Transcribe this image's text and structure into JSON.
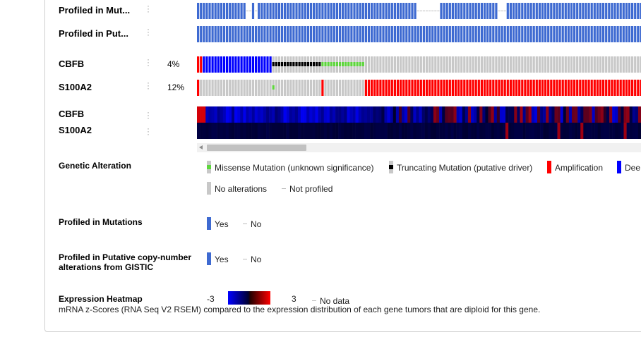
{
  "tracks": {
    "profiled_mutations_label": "Profiled in Mut...",
    "profiled_cna_label": "Profiled in Put...",
    "genes": [
      {
        "name": "CBFB",
        "pct": "4%"
      },
      {
        "name": "S100A2",
        "pct": "12%"
      }
    ],
    "heatmap_genes": [
      "CBFB",
      "S100A2"
    ]
  },
  "legend": {
    "genetic_alteration": {
      "title": "Genetic Alteration",
      "missense": "Missense Mutation (unknown significance)",
      "truncating": "Truncating Mutation (putative driver)",
      "amplification": "Amplification",
      "deep_deletion": "Dee",
      "no_alterations": "No alterations",
      "not_profiled": "Not profiled"
    },
    "profiled_mutations": {
      "title": "Profiled in Mutations",
      "yes": "Yes",
      "no": "No"
    },
    "profiled_cna": {
      "title_line1": "Profiled in Putative copy-number",
      "title_line2": "alterations from GISTIC",
      "yes": "Yes",
      "no": "No"
    },
    "expression_heatmap": {
      "title": "Expression Heatmap",
      "min": "-3",
      "max": "3",
      "no_data": "No data",
      "description": "mRNA z-Scores (RNA Seq V2 RSEM) compared to the expression distribution of each gene tumors that are diploid for this gene."
    }
  },
  "colors": {
    "profiled": "#3e6ad1",
    "no_alteration": "#c8c8c8",
    "amplification": "#ff0000",
    "deep_deletion": "#0000ff",
    "missense": "#5ed63d",
    "truncating": "#000000",
    "heat_low": "#0000ff",
    "heat_high": "#ff0000"
  }
}
